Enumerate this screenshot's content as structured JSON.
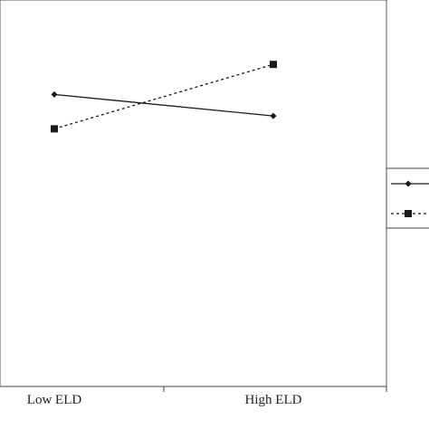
{
  "chart_data": {
    "type": "line",
    "categories": [
      "Low ELD",
      "High ELD"
    ],
    "series": [
      {
        "values": [
          3.4,
          3.15
        ],
        "line_style": "solid",
        "marker": "diamond",
        "color": "#1a1a1a"
      },
      {
        "values": [
          3.0,
          3.75
        ],
        "line_style": "dashed",
        "marker": "square",
        "color": "#1a1a1a"
      }
    ],
    "ylim": [
      0,
      4.5
    ],
    "grid": false,
    "legend": {
      "position": "right",
      "entries": 2
    }
  }
}
